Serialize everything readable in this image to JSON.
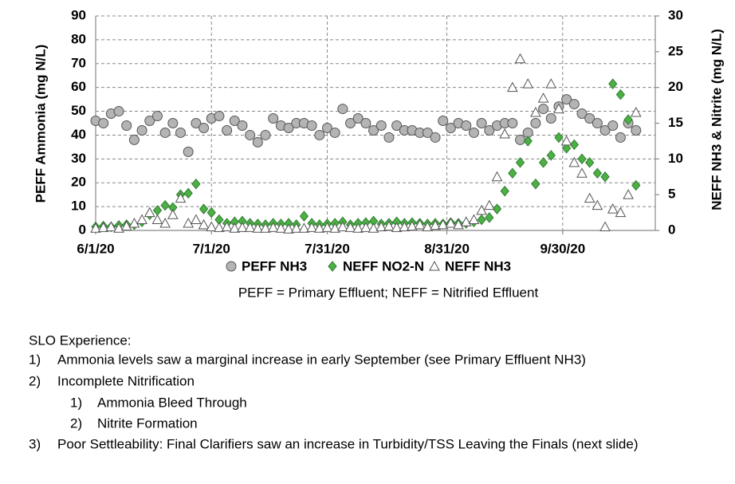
{
  "chart_data": {
    "type": "scatter",
    "ylabel": "PEFF Ammonia (mg N/L)",
    "y2label": "NEFF NH3 & Nitrite (mg N/L)",
    "annotation": "PEFF = Primary Effluent; NEFF = Nitrified Effluent",
    "xlim": [
      "2020-06-01",
      "2020-10-24"
    ],
    "xticks": [
      {
        "value": "2020-06-01",
        "label": "6/1/20"
      },
      {
        "value": "2020-07-01",
        "label": "7/1/20"
      },
      {
        "value": "2020-07-31",
        "label": "7/31/20"
      },
      {
        "value": "2020-08-31",
        "label": "8/31/20"
      },
      {
        "value": "2020-09-30",
        "label": "9/30/20"
      }
    ],
    "ylim": [
      0,
      90
    ],
    "yticks": [
      0,
      10,
      20,
      30,
      40,
      50,
      60,
      70,
      80,
      90
    ],
    "y2lim": [
      0,
      30
    ],
    "y2ticks": [
      0,
      5,
      10,
      15,
      20,
      25,
      30
    ],
    "grid": true,
    "legend": "bottom",
    "x": [
      "2020-06-01",
      "2020-06-03",
      "2020-06-05",
      "2020-06-07",
      "2020-06-09",
      "2020-06-11",
      "2020-06-13",
      "2020-06-15",
      "2020-06-17",
      "2020-06-19",
      "2020-06-21",
      "2020-06-23",
      "2020-06-25",
      "2020-06-27",
      "2020-06-29",
      "2020-07-01",
      "2020-07-03",
      "2020-07-05",
      "2020-07-07",
      "2020-07-09",
      "2020-07-11",
      "2020-07-13",
      "2020-07-15",
      "2020-07-17",
      "2020-07-19",
      "2020-07-21",
      "2020-07-23",
      "2020-07-25",
      "2020-07-27",
      "2020-07-29",
      "2020-07-31",
      "2020-08-02",
      "2020-08-04",
      "2020-08-06",
      "2020-08-08",
      "2020-08-10",
      "2020-08-12",
      "2020-08-14",
      "2020-08-16",
      "2020-08-18",
      "2020-08-20",
      "2020-08-22",
      "2020-08-24",
      "2020-08-26",
      "2020-08-28",
      "2020-08-30",
      "2020-09-01",
      "2020-09-03",
      "2020-09-05",
      "2020-09-07",
      "2020-09-09",
      "2020-09-11",
      "2020-09-13",
      "2020-09-15",
      "2020-09-17",
      "2020-09-19",
      "2020-09-21",
      "2020-09-23",
      "2020-09-25",
      "2020-09-27",
      "2020-09-29",
      "2020-10-01",
      "2020-10-03",
      "2020-10-05",
      "2020-10-07",
      "2020-10-09",
      "2020-10-11",
      "2020-10-13",
      "2020-10-15",
      "2020-10-17",
      "2020-10-19"
    ],
    "series": [
      {
        "name": "PEFF NH3",
        "color": "#b4b4b4",
        "marker": "circle",
        "axis": "y",
        "values": [
          46,
          45,
          49,
          50,
          44,
          38,
          42,
          46,
          48,
          41,
          45,
          41,
          33,
          45,
          43,
          47,
          48,
          42,
          46,
          44,
          40,
          37,
          40,
          47,
          44,
          43,
          45,
          45,
          44,
          40,
          43,
          41,
          51,
          45,
          47,
          45,
          42,
          44,
          39,
          44,
          42,
          42,
          41,
          41,
          39,
          46,
          43,
          45,
          44,
          41,
          45,
          42,
          44,
          45,
          45,
          38,
          41,
          45,
          51,
          47,
          52,
          55,
          53,
          49,
          47,
          45,
          42,
          44,
          39,
          45,
          42
        ]
      },
      {
        "name": "NEFF NO2-N",
        "color": "#4cb043",
        "marker": "diamond",
        "axis": "y2",
        "values": [
          0.5,
          0.6,
          0.5,
          0.7,
          0.8,
          0.8,
          1.2,
          2.2,
          2.8,
          3.5,
          3.2,
          5.0,
          5.2,
          6.5,
          3.0,
          2.5,
          1.5,
          1.0,
          1.2,
          1.3,
          1.0,
          0.9,
          0.8,
          1.0,
          0.9,
          1.0,
          0.8,
          2.0,
          1.0,
          0.8,
          0.9,
          1.0,
          1.2,
          0.8,
          1.0,
          1.1,
          1.3,
          0.9,
          1.0,
          1.2,
          1.0,
          1.1,
          1.0,
          0.9,
          1.0,
          0.9,
          1.1,
          1.0,
          1.0,
          1.2,
          1.5,
          1.8,
          3.0,
          5.5,
          8.0,
          9.5,
          12.5,
          6.5,
          9.5,
          10.5,
          13.0,
          11.5,
          12.0,
          10.0,
          9.5,
          8.0,
          7.5,
          20.5,
          19.0,
          15.5,
          6.3
        ]
      },
      {
        "name": "NEFF NH3",
        "color": "#ffffff",
        "marker": "triangle",
        "axis": "y2",
        "values": [
          0.3,
          0.4,
          0.5,
          0.3,
          0.6,
          1.0,
          1.5,
          2.5,
          1.5,
          1.0,
          2.2,
          4.5,
          1.0,
          1.5,
          0.8,
          0.5,
          0.4,
          0.5,
          0.3,
          0.4,
          0.4,
          0.3,
          0.3,
          0.4,
          0.3,
          0.2,
          0.3,
          0.3,
          0.4,
          0.3,
          0.4,
          0.3,
          0.5,
          0.4,
          0.3,
          0.4,
          0.3,
          0.5,
          0.6,
          0.4,
          0.5,
          0.6,
          0.8,
          0.5,
          0.7,
          0.8,
          1.0,
          0.8,
          1.2,
          1.5,
          2.8,
          3.5,
          7.5,
          13.5,
          20.0,
          24.0,
          20.5,
          16.5,
          18.5,
          20.5,
          17.0,
          12.5,
          9.5,
          8.0,
          4.5,
          3.5,
          0.5,
          3.0,
          2.5,
          5.0,
          16.5
        ]
      }
    ]
  },
  "notes": {
    "heading": "SLO Experience:",
    "items": [
      {
        "marker": "1)",
        "text": "Ammonia levels saw a marginal increase in early September (see Primary Effluent NH3)"
      },
      {
        "marker": "2)",
        "text": "Incomplete Nitrification",
        "subitems": [
          {
            "marker": "1)",
            "text": "Ammonia Bleed Through"
          },
          {
            "marker": "2)",
            "text": "Nitrite Formation"
          }
        ]
      },
      {
        "marker": "3)",
        "text": "Poor Settleability: Final Clarifiers saw an increase in Turbidity/TSS Leaving the Finals (next slide)"
      }
    ]
  }
}
